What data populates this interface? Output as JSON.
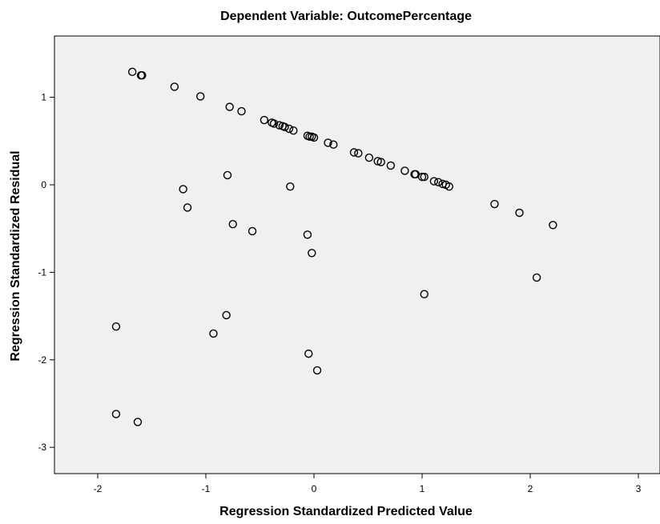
{
  "chart_data": {
    "type": "scatter",
    "title": "Dependent Variable: OutcomePercentage",
    "xlabel": "Regression Standardized Predicted Value",
    "ylabel": "Regression Standardized Residual",
    "xlim": [
      -2.4,
      3.2
    ],
    "ylim": [
      -3.3,
      1.7
    ],
    "xticks": [
      -2,
      -1,
      0,
      1,
      2,
      3
    ],
    "yticks": [
      1,
      0,
      -1,
      -2,
      -3
    ],
    "xtick_labels": [
      "-2",
      "-1",
      "0",
      "1",
      "2",
      "3"
    ],
    "ytick_labels": [
      "1",
      "0",
      "-1",
      "-2",
      "-3"
    ],
    "grid": false,
    "colors": {
      "plot_background": "#f0f0f0",
      "marker_stroke": "#000000",
      "axis": "#000000"
    },
    "points": [
      {
        "x": -1.68,
        "y": 1.29
      },
      {
        "x": -1.6,
        "y": 1.25
      },
      {
        "x": -1.59,
        "y": 1.25
      },
      {
        "x": -1.29,
        "y": 1.12
      },
      {
        "x": -1.05,
        "y": 1.01
      },
      {
        "x": -0.78,
        "y": 0.89
      },
      {
        "x": -0.67,
        "y": 0.84
      },
      {
        "x": -0.46,
        "y": 0.74
      },
      {
        "x": -0.39,
        "y": 0.71
      },
      {
        "x": -0.37,
        "y": 0.7
      },
      {
        "x": -0.32,
        "y": 0.68
      },
      {
        "x": -0.29,
        "y": 0.67
      },
      {
        "x": -0.27,
        "y": 0.66
      },
      {
        "x": -0.23,
        "y": 0.64
      },
      {
        "x": -0.19,
        "y": 0.62
      },
      {
        "x": -0.06,
        "y": 0.56
      },
      {
        "x": -0.04,
        "y": 0.55
      },
      {
        "x": -0.02,
        "y": 0.55
      },
      {
        "x": 0.0,
        "y": 0.54
      },
      {
        "x": 0.13,
        "y": 0.48
      },
      {
        "x": 0.18,
        "y": 0.46
      },
      {
        "x": 0.37,
        "y": 0.37
      },
      {
        "x": 0.41,
        "y": 0.36
      },
      {
        "x": 0.51,
        "y": 0.31
      },
      {
        "x": 0.59,
        "y": 0.27
      },
      {
        "x": 0.62,
        "y": 0.26
      },
      {
        "x": 0.71,
        "y": 0.22
      },
      {
        "x": 0.84,
        "y": 0.16
      },
      {
        "x": 0.93,
        "y": 0.12
      },
      {
        "x": 0.94,
        "y": 0.12
      },
      {
        "x": 1.0,
        "y": 0.09
      },
      {
        "x": 1.02,
        "y": 0.09
      },
      {
        "x": 1.11,
        "y": 0.04
      },
      {
        "x": 1.15,
        "y": 0.03
      },
      {
        "x": 1.19,
        "y": 0.01
      },
      {
        "x": 1.22,
        "y": 0.0
      },
      {
        "x": 1.25,
        "y": -0.02
      },
      {
        "x": 1.67,
        "y": -0.22
      },
      {
        "x": 1.9,
        "y": -0.32
      },
      {
        "x": 2.21,
        "y": -0.46
      },
      {
        "x": -1.21,
        "y": -0.05
      },
      {
        "x": -1.17,
        "y": -0.26
      },
      {
        "x": -0.8,
        "y": 0.11
      },
      {
        "x": -0.75,
        "y": -0.45
      },
      {
        "x": -0.57,
        "y": -0.53
      },
      {
        "x": -0.22,
        "y": -0.02
      },
      {
        "x": -0.06,
        "y": -0.57
      },
      {
        "x": -0.02,
        "y": -0.78
      },
      {
        "x": 2.06,
        "y": -1.06
      },
      {
        "x": 1.02,
        "y": -1.25
      },
      {
        "x": -1.83,
        "y": -1.62
      },
      {
        "x": -0.81,
        "y": -1.49
      },
      {
        "x": -0.93,
        "y": -1.7
      },
      {
        "x": -0.05,
        "y": -1.93
      },
      {
        "x": 0.03,
        "y": -2.12
      },
      {
        "x": -1.83,
        "y": -2.62
      },
      {
        "x": -1.63,
        "y": -2.71
      }
    ]
  }
}
